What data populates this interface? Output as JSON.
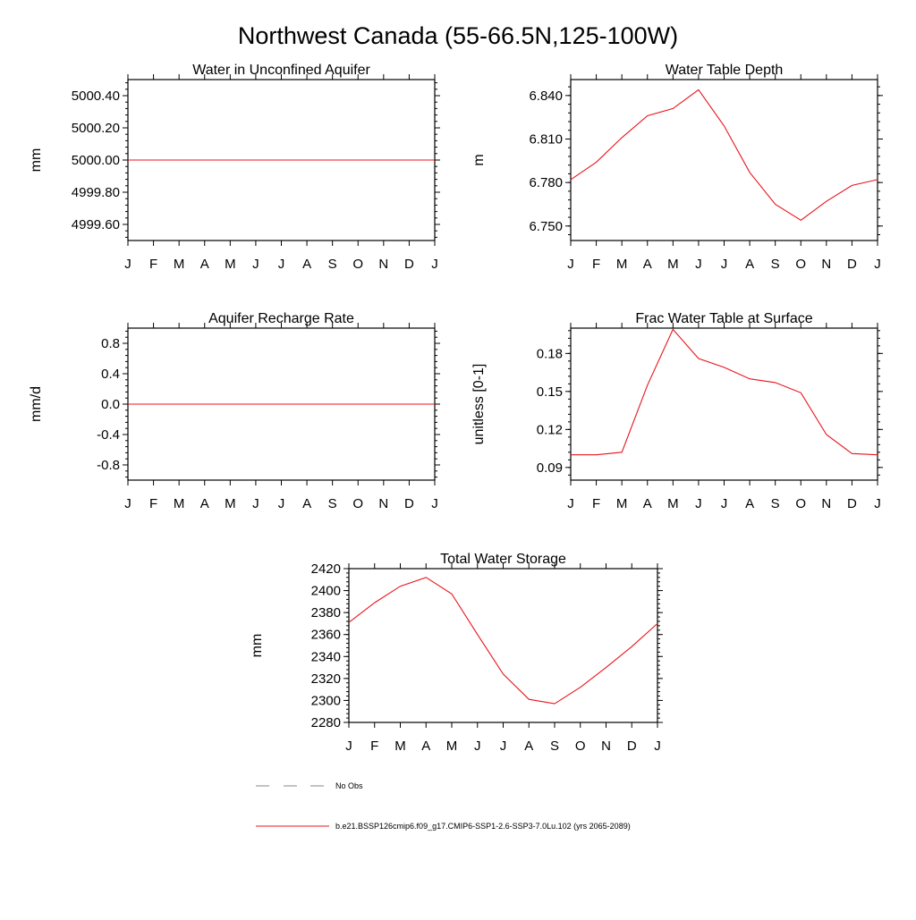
{
  "page_title": "Northwest Canada (55-66.5N,125-100W)",
  "months": [
    "J",
    "F",
    "M",
    "A",
    "M",
    "J",
    "J",
    "A",
    "S",
    "O",
    "N",
    "D",
    "J"
  ],
  "series_color": "#e8141b",
  "obs_color": "#888888",
  "legend": {
    "obs_label": "No Obs",
    "model_label": "b.e21.BSSP126cmip6.f09_g17.CMIP6-SSP1-2.6-SSP3-7.0Lu.102 (yrs 2065-2089)"
  },
  "chart_data": [
    {
      "type": "line",
      "title": "Water in Unconfined Aquifer",
      "ylabel": "mm",
      "xlabel": "",
      "ylim": [
        4999.5,
        5000.5
      ],
      "yticks": [
        4999.6,
        4999.8,
        5000.0,
        5000.2,
        5000.4
      ],
      "ytick_labels": [
        "4999.60",
        "4999.80",
        "5000.00",
        "5000.20",
        "5000.40"
      ],
      "values": [
        5000.0,
        5000.0,
        5000.0,
        5000.0,
        5000.0,
        5000.0,
        5000.0,
        5000.0,
        5000.0,
        5000.0,
        5000.0,
        5000.0,
        5000.0
      ]
    },
    {
      "type": "line",
      "title": "Water Table Depth",
      "ylabel": "m",
      "xlabel": "",
      "ylim": [
        6.74,
        6.851
      ],
      "yticks": [
        6.75,
        6.78,
        6.81,
        6.84
      ],
      "ytick_labels": [
        "6.750",
        "6.780",
        "6.810",
        "6.840"
      ],
      "values": [
        6.782,
        6.794,
        6.811,
        6.826,
        6.831,
        6.844,
        6.819,
        6.787,
        6.765,
        6.754,
        6.767,
        6.778,
        6.782
      ]
    },
    {
      "type": "line",
      "title": "Aquifer Recharge Rate",
      "ylabel": "mm/d",
      "xlabel": "",
      "ylim": [
        -1.0,
        1.0
      ],
      "yticks": [
        -0.8,
        -0.4,
        0.0,
        0.4,
        0.8
      ],
      "ytick_labels": [
        "-0.8",
        "-0.4",
        "0.0",
        "0.4",
        "0.8"
      ],
      "values": [
        0,
        0,
        0,
        0,
        0,
        0,
        0,
        0,
        0,
        0,
        0,
        0,
        0
      ]
    },
    {
      "type": "line",
      "title": "Frac Water Table at Surface",
      "ylabel": "unitless [0-1]",
      "xlabel": "",
      "ylim": [
        0.08,
        0.2
      ],
      "yticks": [
        0.09,
        0.12,
        0.15,
        0.18
      ],
      "ytick_labels": [
        "0.09",
        "0.12",
        "0.15",
        "0.18"
      ],
      "values": [
        0.1,
        0.1,
        0.102,
        0.155,
        0.199,
        0.176,
        0.169,
        0.16,
        0.157,
        0.149,
        0.116,
        0.101,
        0.1
      ]
    },
    {
      "type": "line",
      "title": "Total Water Storage",
      "ylabel": "mm",
      "xlabel": "",
      "ylim": [
        2280,
        2420
      ],
      "yticks": [
        2280,
        2300,
        2320,
        2340,
        2360,
        2380,
        2400,
        2420
      ],
      "ytick_labels": [
        "2280",
        "2300",
        "2320",
        "2340",
        "2360",
        "2380",
        "2400",
        "2420"
      ],
      "values": [
        2371,
        2389,
        2404,
        2412,
        2397,
        2360,
        2324,
        2301,
        2297,
        2312,
        2330,
        2349,
        2370
      ]
    }
  ]
}
